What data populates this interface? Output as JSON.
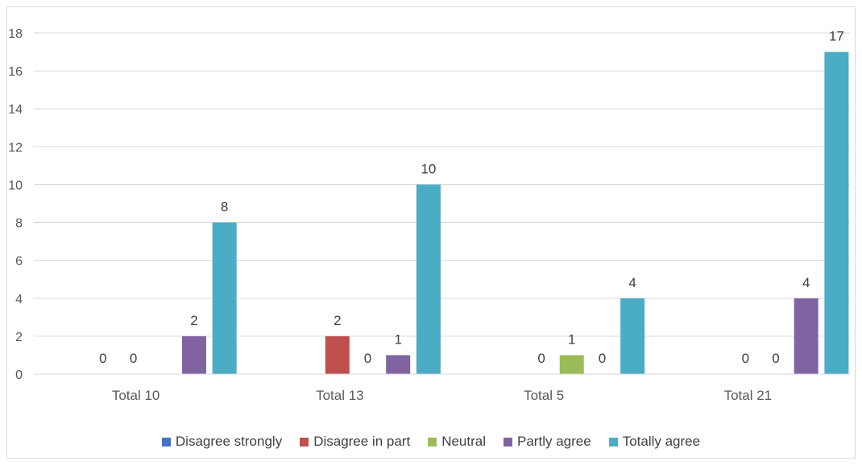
{
  "chart_data": {
    "type": "bar",
    "title": "",
    "xlabel": "",
    "ylabel": "",
    "ylim": [
      0,
      18
    ],
    "yticks": [
      0,
      2,
      4,
      6,
      8,
      10,
      12,
      14,
      16,
      18
    ],
    "grid": true,
    "legend_position": "bottom",
    "categories": [
      "Total 10",
      "Total 13",
      "Total 5",
      "Total 21"
    ],
    "series": [
      {
        "name": "Disagree strongly",
        "color": "#4472C4",
        "values": [
          0,
          null,
          0,
          0
        ]
      },
      {
        "name": "Disagree in part",
        "color": "#C0504D",
        "values": [
          0,
          2,
          null,
          0
        ]
      },
      {
        "name": "Neutral",
        "color": "#9BBB59",
        "values": [
          null,
          null,
          1,
          null
        ]
      },
      {
        "name": "Partly agree",
        "color": "#8064A2",
        "values": [
          2,
          1,
          0,
          4
        ]
      },
      {
        "name": "Totally agree",
        "color": "#4BACC6",
        "values": [
          8,
          10,
          4,
          17
        ]
      }
    ],
    "data_labels": [
      {
        "category": 0,
        "series": 0,
        "text": "0"
      },
      {
        "category": 0,
        "series": 1,
        "text": "0"
      },
      {
        "category": 0,
        "series": 3,
        "text": "2"
      },
      {
        "category": 0,
        "series": 4,
        "text": "8"
      },
      {
        "category": 1,
        "series": 1,
        "text": "2"
      },
      {
        "category": 1,
        "series": 2,
        "text": "0"
      },
      {
        "category": 1,
        "series": 3,
        "text": "1"
      },
      {
        "category": 1,
        "series": 4,
        "text": "10"
      },
      {
        "category": 2,
        "series": 1,
        "text": "0"
      },
      {
        "category": 2,
        "series": 2,
        "text": "1"
      },
      {
        "category": 2,
        "series": 3,
        "text": "0"
      },
      {
        "category": 2,
        "series": 4,
        "text": "4"
      },
      {
        "category": 3,
        "series": 1,
        "text": "0"
      },
      {
        "category": 3,
        "series": 2,
        "text": "0"
      },
      {
        "category": 3,
        "series": 3,
        "text": "4"
      },
      {
        "category": 3,
        "series": 4,
        "text": "17"
      }
    ]
  },
  "colors": {
    "gridline": "#d9d9d9",
    "axis_text": "#595959",
    "label_text": "#404040"
  }
}
